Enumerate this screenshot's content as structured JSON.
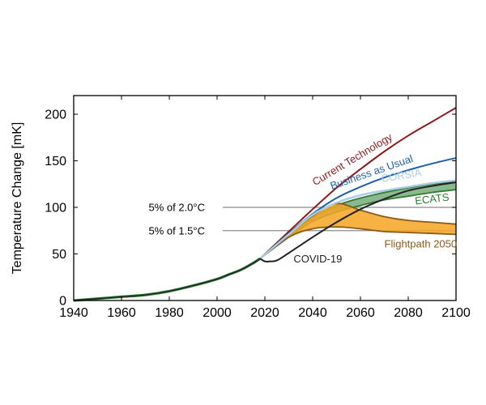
{
  "chart_data": {
    "type": "line",
    "title": "",
    "xlabel": "",
    "ylabel": "Temperature Change [mK]",
    "xlim": [
      1940,
      2100
    ],
    "ylim": [
      0,
      220
    ],
    "xticks": [
      1940,
      1960,
      1980,
      2000,
      2020,
      2040,
      2060,
      2080,
      2100
    ],
    "yticks": [
      0,
      50,
      100,
      150,
      200
    ],
    "grid": false,
    "legend": "none (series labeled inline)",
    "reference_lines": [
      {
        "label": "5% of 2.0°C",
        "y": 100,
        "x_start": 2020,
        "x_end": 2100,
        "color": "#8c8c8c"
      },
      {
        "label": "5% of 1.5°C",
        "y": 75,
        "x_start": 2020,
        "x_end": 2100,
        "color": "#8c8c8c"
      }
    ],
    "series": [
      {
        "name": "Current Technology",
        "color": "#8b1a1a",
        "x": [
          2018,
          2030,
          2040,
          2050,
          2060,
          2070,
          2080,
          2090,
          2100
        ],
        "values": [
          45,
          74,
          98,
          121,
          141,
          160,
          177,
          192,
          207
        ]
      },
      {
        "name": "Business as Usual",
        "color": "#1f5fa8",
        "x": [
          2018,
          2030,
          2040,
          2050,
          2060,
          2070,
          2080,
          2090,
          2100
        ],
        "values": [
          45,
          72,
          93,
          110,
          122,
          132,
          140,
          147,
          153
        ]
      },
      {
        "name": "CORSIA",
        "color": "#a8cde6",
        "x": [
          2018,
          2030,
          2040,
          2050,
          2060,
          2070,
          2080,
          2090,
          2100
        ],
        "values": [
          45,
          71,
          92,
          105,
          113,
          118,
          122,
          126,
          129
        ]
      },
      {
        "name": "ECATS",
        "color": "#2e7d32",
        "band": true,
        "x": [
          2018,
          2030,
          2040,
          2050,
          2060,
          2070,
          2080,
          2090,
          2100
        ],
        "upper": [
          45,
          70,
          89,
          102,
          110,
          116,
          121,
          125,
          128
        ],
        "lower": [
          45,
          68,
          85,
          95,
          102,
          108,
          112,
          116,
          119
        ]
      },
      {
        "name": "Flightpath 2050",
        "color": "#8b5a1a",
        "fill": "#f5a623",
        "band": true,
        "x": [
          2018,
          2030,
          2040,
          2050,
          2060,
          2070,
          2080,
          2090,
          2100
        ],
        "upper": [
          45,
          71,
          91,
          104,
          97,
          90,
          86,
          84,
          82
        ],
        "lower": [
          45,
          68,
          77,
          79,
          77,
          74,
          73,
          72,
          71
        ]
      },
      {
        "name": "COVID-19",
        "color": "#222222",
        "x": [
          2018,
          2020,
          2022,
          2025,
          2030,
          2040,
          2050,
          2060,
          2070,
          2080,
          2090,
          2100
        ],
        "values": [
          45,
          42,
          42,
          43,
          51,
          68,
          84,
          98,
          109,
          118,
          123,
          127
        ]
      }
    ],
    "history": {
      "name": "historical",
      "color": "#222222",
      "x": [
        1940,
        1950,
        1960,
        1970,
        1980,
        1990,
        2000,
        2005,
        2010,
        2015,
        2018
      ],
      "values": [
        0,
        2,
        4,
        6,
        10,
        16,
        23,
        28,
        33,
        40,
        45
      ]
    },
    "annotations": [
      {
        "text": "Current Technology",
        "at_x": 2041,
        "at_y": 123,
        "color": "#8b1a1a",
        "angle": -31
      },
      {
        "text": "Business as Usual",
        "at_x": 2048,
        "at_y": 119,
        "color": "#1f5fa8",
        "angle": -19
      },
      {
        "text": "CORSIA",
        "at_x": 2069,
        "at_y": 127,
        "color": "#a8cde6",
        "angle": -9
      },
      {
        "text": "ECATS",
        "at_x": 2083,
        "at_y": 103,
        "color": "#2e7d32",
        "angle": -7
      },
      {
        "text": "Flightpath 2050",
        "at_x": 2070,
        "at_y": 57,
        "color": "#8b5a1a",
        "angle": 0
      },
      {
        "text": "COVID-19",
        "at_x": 2032,
        "at_y": 41,
        "color": "#222222",
        "angle": 0
      }
    ]
  }
}
